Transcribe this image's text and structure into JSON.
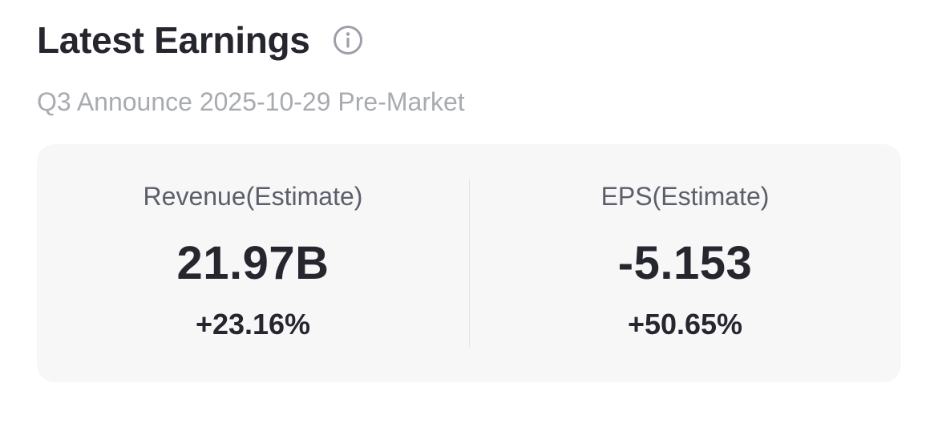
{
  "header": {
    "title": "Latest Earnings",
    "info_icon": "info-circle-icon"
  },
  "subtitle": "Q3 Announce 2025-10-29 Pre-Market",
  "metrics": [
    {
      "label": "Revenue(Estimate)",
      "value": "21.97B",
      "change": "+23.16%"
    },
    {
      "label": "EPS(Estimate)",
      "value": "-5.153",
      "change": "+50.65%"
    }
  ],
  "colors": {
    "text_primary": "#26262f",
    "text_secondary": "#5c5e6a",
    "text_muted": "#a9abb2",
    "card_bg": "#f7f7f8"
  }
}
